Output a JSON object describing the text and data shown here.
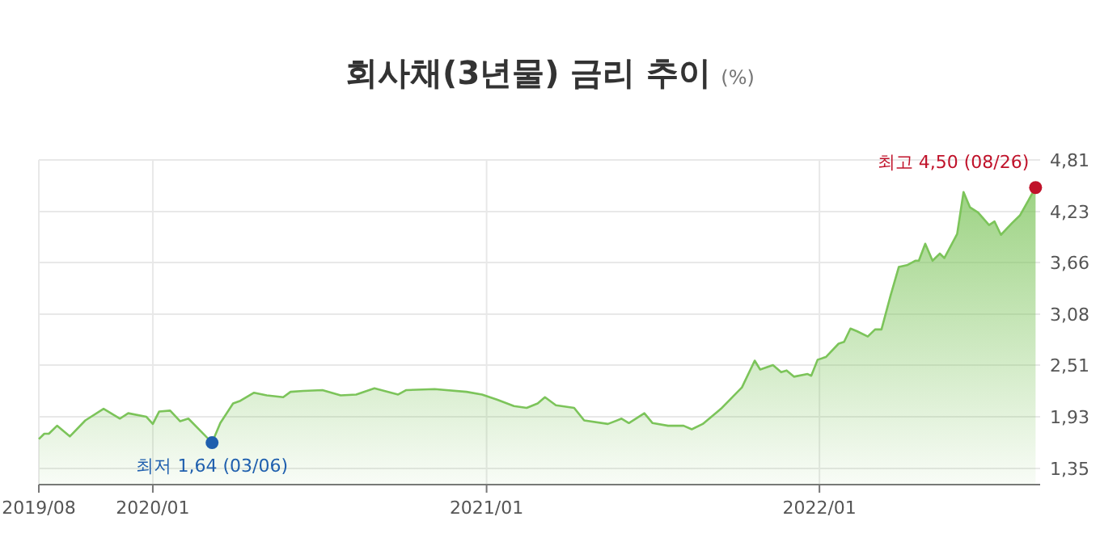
{
  "chart_data": {
    "type": "area",
    "title": "회사채(3년물) 금리 추이",
    "subtitle": "(%)",
    "series": [
      {
        "color": "#7cc45a",
        "x": [
          "2019-08-29",
          "2019-09-04",
          "2019-09-09",
          "2019-09-18",
          "2019-10-02",
          "2019-10-19",
          "2019-11-08",
          "2019-11-26",
          "2019-12-05",
          "2019-12-25",
          "2020-01-01",
          "2020-01-08",
          "2020-01-20",
          "2020-01-31",
          "2020-02-09",
          "2020-03-06",
          "2020-03-15",
          "2020-03-29",
          "2020-04-06",
          "2020-04-21",
          "2020-05-05",
          "2020-05-23",
          "2020-05-31",
          "2020-06-14",
          "2020-07-05",
          "2020-07-25",
          "2020-08-11",
          "2020-08-31",
          "2020-09-26",
          "2020-10-05",
          "2020-11-05",
          "2020-12-10",
          "2020-12-27",
          "2021-01-13",
          "2021-01-31",
          "2021-02-14",
          "2021-02-26",
          "2021-03-06",
          "2021-03-18",
          "2021-04-07",
          "2021-04-18",
          "2021-05-14",
          "2021-05-29",
          "2021-06-06",
          "2021-06-23",
          "2021-07-02",
          "2021-07-19",
          "2021-08-05",
          "2021-08-14",
          "2021-08-26",
          "2021-09-15",
          "2021-10-08",
          "2021-10-22",
          "2021-10-28",
          "2021-11-11",
          "2021-11-20",
          "2021-11-26",
          "2021-12-04",
          "2021-12-19",
          "2021-12-23",
          "2021-12-30",
          "2022-01-08",
          "2022-01-22",
          "2022-01-28",
          "2022-02-04",
          "2022-02-11",
          "2022-02-23",
          "2022-03-03",
          "2022-03-10",
          "2022-03-20",
          "2022-03-29",
          "2022-04-07",
          "2022-04-16",
          "2022-04-20",
          "2022-04-27",
          "2022-05-05",
          "2022-05-13",
          "2022-05-18",
          "2022-06-01",
          "2022-06-08",
          "2022-06-15",
          "2022-06-24",
          "2022-07-06",
          "2022-07-12",
          "2022-07-19",
          "2022-07-31",
          "2022-08-09",
          "2022-08-26"
        ],
        "values": [
          1.68,
          1.74,
          1.74,
          1.83,
          1.71,
          1.89,
          2.02,
          1.91,
          1.97,
          1.93,
          1.85,
          1.99,
          2.0,
          1.88,
          1.91,
          1.64,
          1.86,
          2.08,
          2.11,
          2.2,
          2.17,
          2.15,
          2.21,
          2.22,
          2.23,
          2.17,
          2.18,
          2.25,
          2.18,
          2.23,
          2.24,
          2.21,
          2.18,
          2.12,
          2.05,
          2.03,
          2.08,
          2.15,
          2.06,
          2.03,
          1.89,
          1.85,
          1.91,
          1.86,
          1.97,
          1.86,
          1.83,
          1.83,
          1.79,
          1.85,
          2.02,
          2.26,
          2.56,
          2.46,
          2.51,
          2.43,
          2.45,
          2.38,
          2.41,
          2.39,
          2.57,
          2.6,
          2.75,
          2.77,
          2.92,
          2.89,
          2.83,
          2.91,
          2.91,
          3.29,
          3.61,
          3.63,
          3.68,
          3.68,
          3.87,
          3.68,
          3.76,
          3.71,
          3.98,
          4.45,
          4.28,
          4.22,
          4.08,
          4.12,
          3.97,
          4.1,
          4.19,
          4.5
        ]
      }
    ],
    "xlim": [
      "2019-08-29",
      "2022-08-31"
    ],
    "xticks": [
      {
        "value": "2019-08-29",
        "label": "2019/08"
      },
      {
        "value": "2020-01-01",
        "label": "2020/01"
      },
      {
        "value": "2021-01-01",
        "label": "2021/01"
      },
      {
        "value": "2022-01-01",
        "label": "2022/01"
      }
    ],
    "ylim": [
      1.17,
      4.81
    ],
    "yticks": [
      {
        "value": 1.35,
        "label": "1,35"
      },
      {
        "value": 1.93,
        "label": "1,93"
      },
      {
        "value": 2.51,
        "label": "2,51"
      },
      {
        "value": 3.08,
        "label": "3,08"
      },
      {
        "value": 3.66,
        "label": "3,66"
      },
      {
        "value": 4.23,
        "label": "4,23"
      },
      {
        "value": 4.81,
        "label": "4,81"
      }
    ],
    "grid": true,
    "annotations": [
      {
        "text": "최저 1,64 (03/06)",
        "x": "2020-03-06",
        "y": 1.64
      },
      {
        "text": "최고 4,50 (08/26)",
        "x": "2022-08-26",
        "y": 4.5
      }
    ]
  }
}
